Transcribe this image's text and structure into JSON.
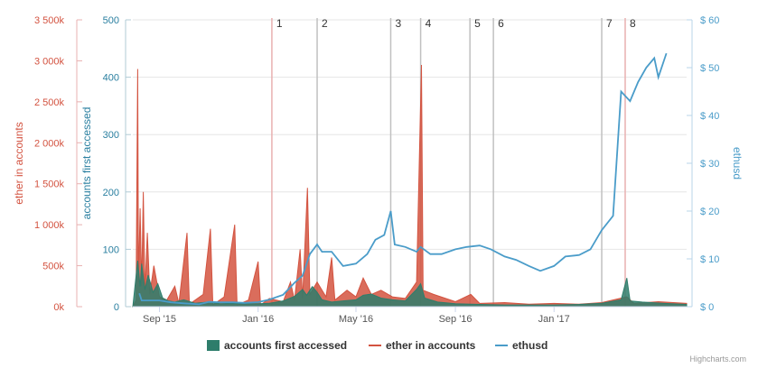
{
  "chart_data": {
    "type": "area",
    "credits": "Highcharts.com",
    "x_range": [
      "2015-07-30",
      "2017-06-14"
    ],
    "x_ticks": [
      "Sep '15",
      "Jan '16",
      "May '16",
      "Sep '16",
      "Jan '17"
    ],
    "y_axes": [
      {
        "id": "ether",
        "title": "ether in accounts",
        "position": "left-outer",
        "ticks": [
          "0k",
          "500k",
          "1 000k",
          "1 500k",
          "2 000k",
          "2 500k",
          "3 000k",
          "3 500k"
        ],
        "range": [
          0,
          3500000
        ],
        "color": "#d35340"
      },
      {
        "id": "accounts",
        "title": "accounts first accessed",
        "position": "left-inner",
        "ticks": [
          "0",
          "100",
          "200",
          "300",
          "400",
          "500"
        ],
        "range": [
          0,
          500
        ],
        "color": "#2a7fa0"
      },
      {
        "id": "ethusd",
        "title": "ethusd",
        "position": "right",
        "ticks": [
          "$ 0",
          "$ 10",
          "$ 20",
          "$ 30",
          "$ 40",
          "$ 50",
          "$ 60"
        ],
        "range": [
          0,
          60
        ],
        "color": "#4a9cc9"
      }
    ],
    "annotations": [
      {
        "label": "1",
        "date": "2016-01-18",
        "color": "#e8b0b0"
      },
      {
        "label": "2",
        "date": "2016-03-14",
        "color": "#c0c0c0"
      },
      {
        "label": "3",
        "date": "2016-06-13",
        "color": "#c0c0c0"
      },
      {
        "label": "4",
        "date": "2016-07-20",
        "color": "#c0c0c0"
      },
      {
        "label": "5",
        "date": "2016-09-19",
        "color": "#c0c0c0"
      },
      {
        "label": "6",
        "date": "2016-10-18",
        "color": "#c0c0c0"
      },
      {
        "label": "7",
        "date": "2017-03-01",
        "color": "#c0c0c0"
      },
      {
        "label": "8",
        "date": "2017-03-30",
        "color": "#e8b0b0"
      }
    ],
    "series": [
      {
        "name": "accounts first accessed",
        "type": "area",
        "axis": "accounts",
        "color": "#2e7d6b",
        "points": [
          [
            "2015-07-30",
            0
          ],
          [
            "2015-08-05",
            80
          ],
          [
            "2015-08-08",
            35
          ],
          [
            "2015-08-10",
            75
          ],
          [
            "2015-08-14",
            30
          ],
          [
            "2015-08-18",
            55
          ],
          [
            "2015-08-24",
            25
          ],
          [
            "2015-08-30",
            40
          ],
          [
            "2015-09-05",
            15
          ],
          [
            "2015-09-12",
            10
          ],
          [
            "2015-09-20",
            8
          ],
          [
            "2015-10-01",
            12
          ],
          [
            "2015-10-15",
            6
          ],
          [
            "2015-11-01",
            8
          ],
          [
            "2015-11-15",
            5
          ],
          [
            "2015-12-01",
            6
          ],
          [
            "2015-12-15",
            5
          ],
          [
            "2016-01-01",
            5
          ],
          [
            "2016-01-15",
            6
          ],
          [
            "2016-02-01",
            10
          ],
          [
            "2016-02-15",
            18
          ],
          [
            "2016-02-25",
            30
          ],
          [
            "2016-03-01",
            20
          ],
          [
            "2016-03-08",
            35
          ],
          [
            "2016-03-14",
            25
          ],
          [
            "2016-03-20",
            12
          ],
          [
            "2016-04-01",
            8
          ],
          [
            "2016-04-15",
            10
          ],
          [
            "2016-05-01",
            12
          ],
          [
            "2016-05-10",
            20
          ],
          [
            "2016-05-20",
            22
          ],
          [
            "2016-06-01",
            15
          ],
          [
            "2016-06-15",
            12
          ],
          [
            "2016-07-01",
            10
          ],
          [
            "2016-07-15",
            30
          ],
          [
            "2016-07-20",
            40
          ],
          [
            "2016-07-25",
            15
          ],
          [
            "2016-08-10",
            8
          ],
          [
            "2016-09-01",
            5
          ],
          [
            "2016-10-01",
            4
          ],
          [
            "2016-11-01",
            3
          ],
          [
            "2016-12-01",
            3
          ],
          [
            "2017-01-01",
            3
          ],
          [
            "2017-02-01",
            4
          ],
          [
            "2017-03-01",
            6
          ],
          [
            "2017-03-25",
            12
          ],
          [
            "2017-04-01",
            50
          ],
          [
            "2017-04-05",
            10
          ],
          [
            "2017-04-20",
            8
          ],
          [
            "2017-05-15",
            6
          ],
          [
            "2017-06-14",
            4
          ]
        ]
      },
      {
        "name": "ether in accounts",
        "type": "area",
        "axis": "ether",
        "color": "#d35340",
        "points": [
          [
            "2015-07-30",
            0
          ],
          [
            "2015-08-03",
            80000
          ],
          [
            "2015-08-05",
            2900000
          ],
          [
            "2015-08-06",
            300000
          ],
          [
            "2015-08-08",
            1200000
          ],
          [
            "2015-08-10",
            250000
          ],
          [
            "2015-08-12",
            1400000
          ],
          [
            "2015-08-14",
            200000
          ],
          [
            "2015-08-17",
            900000
          ],
          [
            "2015-08-20",
            150000
          ],
          [
            "2015-08-25",
            500000
          ],
          [
            "2015-09-01",
            120000
          ],
          [
            "2015-09-10",
            80000
          ],
          [
            "2015-09-20",
            250000
          ],
          [
            "2015-09-25",
            40000
          ],
          [
            "2015-10-05",
            900000
          ],
          [
            "2015-10-08",
            30000
          ],
          [
            "2015-10-25",
            150000
          ],
          [
            "2015-11-03",
            950000
          ],
          [
            "2015-11-06",
            20000
          ],
          [
            "2015-11-20",
            120000
          ],
          [
            "2015-12-03",
            1000000
          ],
          [
            "2015-12-06",
            20000
          ],
          [
            "2015-12-20",
            80000
          ],
          [
            "2016-01-01",
            550000
          ],
          [
            "2016-01-04",
            20000
          ],
          [
            "2016-01-15",
            100000
          ],
          [
            "2016-02-01",
            60000
          ],
          [
            "2016-02-10",
            300000
          ],
          [
            "2016-02-15",
            80000
          ],
          [
            "2016-02-22",
            700000
          ],
          [
            "2016-02-25",
            100000
          ],
          [
            "2016-03-02",
            1450000
          ],
          [
            "2016-03-05",
            150000
          ],
          [
            "2016-03-14",
            300000
          ],
          [
            "2016-03-25",
            120000
          ],
          [
            "2016-04-01",
            600000
          ],
          [
            "2016-04-05",
            80000
          ],
          [
            "2016-04-20",
            200000
          ],
          [
            "2016-05-01",
            120000
          ],
          [
            "2016-05-10",
            350000
          ],
          [
            "2016-05-20",
            150000
          ],
          [
            "2016-06-01",
            200000
          ],
          [
            "2016-06-15",
            120000
          ],
          [
            "2016-07-01",
            100000
          ],
          [
            "2016-07-15",
            300000
          ],
          [
            "2016-07-21",
            2950000
          ],
          [
            "2016-07-23",
            200000
          ],
          [
            "2016-08-05",
            150000
          ],
          [
            "2016-09-01",
            60000
          ],
          [
            "2016-09-20",
            150000
          ],
          [
            "2016-10-01",
            40000
          ],
          [
            "2016-11-01",
            50000
          ],
          [
            "2016-12-01",
            30000
          ],
          [
            "2017-01-01",
            40000
          ],
          [
            "2017-02-01",
            30000
          ],
          [
            "2017-03-01",
            50000
          ],
          [
            "2017-04-01",
            120000
          ],
          [
            "2017-04-10",
            40000
          ],
          [
            "2017-05-10",
            60000
          ],
          [
            "2017-06-14",
            40000
          ]
        ]
      },
      {
        "name": "ethusd",
        "type": "line",
        "axis": "ethusd",
        "color": "#4a9cc9",
        "points": [
          [
            "2015-08-07",
            2.8
          ],
          [
            "2015-08-10",
            1.3
          ],
          [
            "2015-08-20",
            1.3
          ],
          [
            "2015-09-01",
            1.3
          ],
          [
            "2015-09-15",
            0.9
          ],
          [
            "2015-10-01",
            0.7
          ],
          [
            "2015-10-20",
            0.5
          ],
          [
            "2015-11-01",
            1.0
          ],
          [
            "2015-11-15",
            0.9
          ],
          [
            "2015-12-01",
            0.9
          ],
          [
            "2015-12-15",
            0.8
          ],
          [
            "2016-01-01",
            0.95
          ],
          [
            "2016-01-15",
            1.5
          ],
          [
            "2016-02-01",
            2.5
          ],
          [
            "2016-02-15",
            5.0
          ],
          [
            "2016-02-25",
            6.5
          ],
          [
            "2016-03-05",
            11.0
          ],
          [
            "2016-03-14",
            13.0
          ],
          [
            "2016-03-20",
            11.5
          ],
          [
            "2016-04-01",
            11.5
          ],
          [
            "2016-04-15",
            8.5
          ],
          [
            "2016-05-01",
            9.0
          ],
          [
            "2016-05-15",
            11.0
          ],
          [
            "2016-05-25",
            14.0
          ],
          [
            "2016-06-05",
            15.0
          ],
          [
            "2016-06-13",
            20.0
          ],
          [
            "2016-06-18",
            13.0
          ],
          [
            "2016-07-01",
            12.5
          ],
          [
            "2016-07-15",
            11.5
          ],
          [
            "2016-07-20",
            12.5
          ],
          [
            "2016-08-01",
            11.0
          ],
          [
            "2016-08-15",
            11.0
          ],
          [
            "2016-09-01",
            12.0
          ],
          [
            "2016-09-15",
            12.5
          ],
          [
            "2016-10-01",
            12.8
          ],
          [
            "2016-10-15",
            12.0
          ],
          [
            "2016-11-01",
            10.5
          ],
          [
            "2016-11-15",
            9.8
          ],
          [
            "2016-12-01",
            8.5
          ],
          [
            "2016-12-15",
            7.5
          ],
          [
            "2017-01-01",
            8.5
          ],
          [
            "2017-01-15",
            10.5
          ],
          [
            "2017-02-01",
            10.8
          ],
          [
            "2017-02-15",
            12.0
          ],
          [
            "2017-03-01",
            16.0
          ],
          [
            "2017-03-15",
            19.0
          ],
          [
            "2017-03-25",
            45.0
          ],
          [
            "2017-04-05",
            43.0
          ],
          [
            "2017-04-15",
            47.0
          ],
          [
            "2017-04-25",
            50.0
          ],
          [
            "2017-05-05",
            52.0
          ],
          [
            "2017-05-10",
            48.0
          ],
          [
            "2017-05-20",
            53.0
          ]
        ]
      }
    ]
  }
}
